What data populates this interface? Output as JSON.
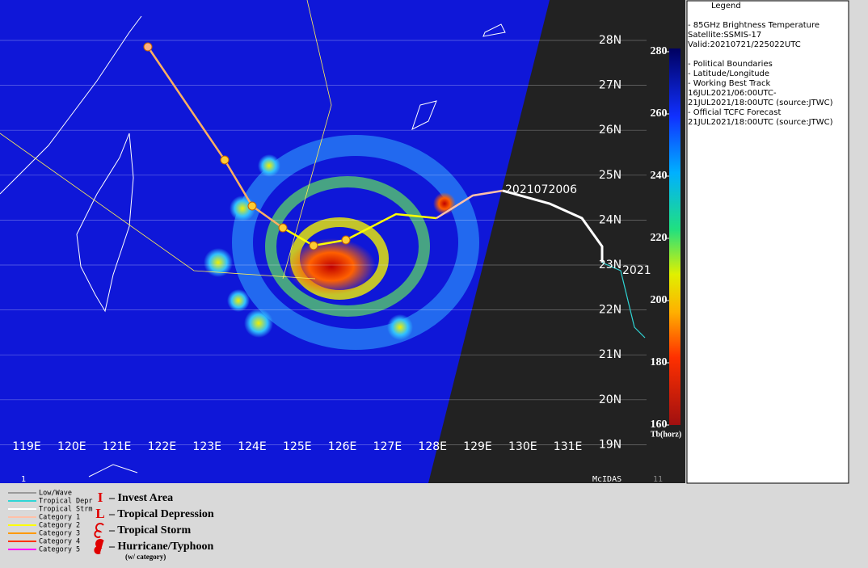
{
  "map": {
    "lon_labels": [
      "119E",
      "120E",
      "121E",
      "122E",
      "123E",
      "124E",
      "125E",
      "126E",
      "127E",
      "128E",
      "129E",
      "130E",
      "131E"
    ],
    "lat_labels": [
      "28N",
      "27N",
      "26N",
      "25N",
      "24N",
      "23N",
      "22N",
      "21N",
      "20N",
      "19N"
    ],
    "track_label": "2021072006",
    "forecast_label": "2021",
    "footer_left": "1",
    "footer_source": "McIDAS",
    "footer_right": "11"
  },
  "colorbar": {
    "lim": [
      160,
      280
    ],
    "ticks": [
      280,
      260,
      240,
      220,
      200,
      180,
      160
    ],
    "unit": "Tb(horz)"
  },
  "legend": {
    "title": "Legend",
    "lines": [
      "-  85GHz Brightness Temperature",
      "Satellite:SSMIS-17",
      "Valid:20210721/225022UTC",
      "",
      "-  Political Boundaries",
      "-  Latitude/Longitude",
      "-  Working Best Track",
      "16JUL2021/06:00UTC-",
      "21JUL2021/18:00UTC   (source:JTWC)",
      "-  Official TCFC Forecast",
      "21JUL2021/18:00UTC  (source:JTWC)"
    ]
  },
  "track_legend": [
    {
      "name": "Low/Wave",
      "color": "#9a9a9a"
    },
    {
      "name": "Tropical Depr",
      "color": "#2fd6d6"
    },
    {
      "name": "Tropical Strm",
      "color": "#ffffff"
    },
    {
      "name": "Category 1",
      "color": "#ffc0a8"
    },
    {
      "name": "Category 2",
      "color": "#ffff00"
    },
    {
      "name": "Category 3",
      "color": "#ff9900"
    },
    {
      "name": "Category 4",
      "color": "#ff3300"
    },
    {
      "name": "Category 5",
      "color": "#ff00ff"
    }
  ],
  "symbol_legend": [
    {
      "symbol": "I",
      "label": "– Invest Area"
    },
    {
      "symbol": "L",
      "label": "– Tropical Depression"
    },
    {
      "label": "– Tropical Storm"
    },
    {
      "label": "– Hurricane/Typhoon",
      "note": "(w/ category)"
    }
  ]
}
